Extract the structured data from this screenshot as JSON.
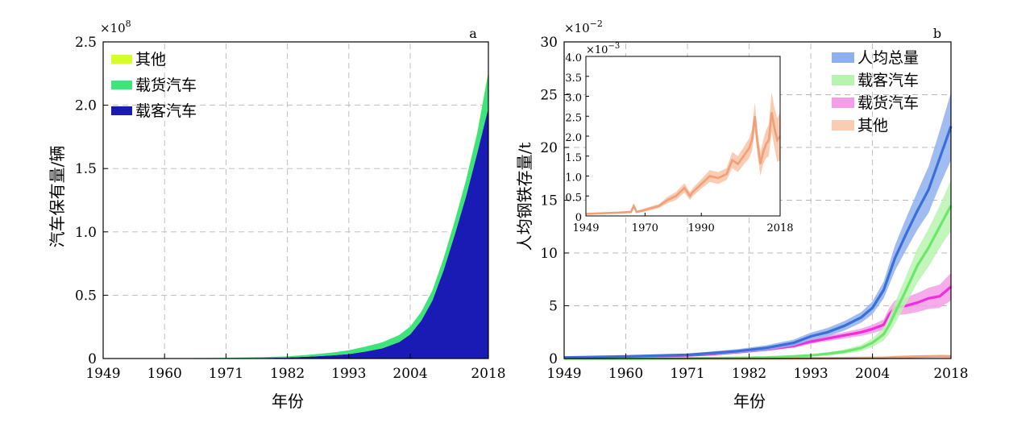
{
  "chart_data": [
    {
      "type": "area",
      "panel_label": "a",
      "xlabel": "年份",
      "ylabel": "汽车保有量/辆",
      "y_multiplier": "×10",
      "y_multiplier_exp": "8",
      "xlim": [
        1949,
        2018
      ],
      "ylim": [
        0,
        2.5
      ],
      "xticks": [
        "1949",
        "1960",
        "1971",
        "1982",
        "1993",
        "2004",
        "2018"
      ],
      "yticks": [
        "0",
        "0.5",
        "1.0",
        "1.5",
        "2.0",
        "2.5"
      ],
      "grid": true,
      "legend_position": "top-left",
      "legend": [
        "其他",
        "载货汽车",
        "载客汽车"
      ],
      "colors": {
        "其他": "#d4ff2a",
        "载货汽车": "#3de47a",
        "载客汽车": "#1a1ab4"
      },
      "x": [
        1949,
        1960,
        1971,
        1978,
        1982,
        1986,
        1990,
        1993,
        1996,
        1999,
        2002,
        2004,
        2006,
        2008,
        2010,
        2012,
        2014,
        2016,
        2018
      ],
      "series": [
        {
          "name": "载客汽车",
          "values": [
            0,
            0,
            0.002,
            0.005,
            0.008,
            0.015,
            0.025,
            0.035,
            0.055,
            0.08,
            0.13,
            0.19,
            0.3,
            0.46,
            0.7,
            0.98,
            1.28,
            1.62,
            1.98
          ]
        },
        {
          "name": "载货汽车",
          "values": [
            0,
            0.001,
            0.004,
            0.007,
            0.01,
            0.015,
            0.022,
            0.03,
            0.04,
            0.048,
            0.055,
            0.062,
            0.07,
            0.08,
            0.095,
            0.11,
            0.13,
            0.16,
            0.28
          ]
        },
        {
          "name": "其他",
          "values": [
            0,
            0,
            0,
            0,
            0,
            0,
            0,
            0,
            0,
            0,
            0,
            0,
            0,
            0,
            0.002,
            0.003,
            0.004,
            0.006,
            0.008
          ]
        }
      ]
    },
    {
      "type": "line",
      "panel_label": "b",
      "xlabel": "年份",
      "ylabel": "人均钢铁存量/t",
      "y_multiplier": "×10",
      "y_multiplier_exp": "−2",
      "xlim": [
        1949,
        2018
      ],
      "ylim": [
        0,
        30
      ],
      "xticks": [
        "1949",
        "1960",
        "1971",
        "1982",
        "1993",
        "2004",
        "2018"
      ],
      "yticks": [
        "0",
        "5",
        "10",
        "15",
        "20",
        "25",
        "30"
      ],
      "grid": true,
      "legend_position": "top-right",
      "legend": [
        "人均总量",
        "载客汽车",
        "载货汽车",
        "其他"
      ],
      "x": [
        1949,
        1960,
        1971,
        1975,
        1980,
        1985,
        1990,
        1993,
        1996,
        1999,
        2002,
        2004,
        2006,
        2007,
        2008,
        2010,
        2012,
        2014,
        2016,
        2018
      ],
      "series": [
        {
          "name": "人均总量",
          "color": "#3a6fd8",
          "band": "#8fb0ee",
          "values": [
            0.1,
            0.2,
            0.35,
            0.5,
            0.7,
            1.0,
            1.5,
            2.1,
            2.5,
            3.1,
            3.9,
            4.8,
            6.5,
            8.0,
            9.5,
            11.8,
            14.0,
            16.0,
            19.0,
            22.0
          ],
          "spread": [
            0.05,
            0.05,
            0.1,
            0.15,
            0.2,
            0.25,
            0.3,
            0.35,
            0.4,
            0.45,
            0.5,
            0.6,
            0.8,
            1.0,
            1.2,
            1.5,
            1.8,
            2.2,
            2.6,
            3.2
          ]
        },
        {
          "name": "载客汽车",
          "color": "#6be86b",
          "band": "#b9f3b0",
          "values": [
            0,
            0,
            0.02,
            0.04,
            0.06,
            0.1,
            0.2,
            0.3,
            0.45,
            0.65,
            1.0,
            1.5,
            2.3,
            3.2,
            4.3,
            6.5,
            8.8,
            10.5,
            12.5,
            14.5
          ],
          "spread": [
            0,
            0,
            0.01,
            0.02,
            0.03,
            0.05,
            0.08,
            0.1,
            0.15,
            0.2,
            0.3,
            0.4,
            0.6,
            0.8,
            1.0,
            1.3,
            1.6,
            1.8,
            2.0,
            2.4
          ]
        },
        {
          "name": "载货汽车",
          "color": "#ee2ed8",
          "band": "#f59ee8",
          "values": [
            0.05,
            0.15,
            0.3,
            0.4,
            0.6,
            0.85,
            1.2,
            1.6,
            1.9,
            2.2,
            2.5,
            2.8,
            3.2,
            4.2,
            4.8,
            5.0,
            5.3,
            5.7,
            5.9,
            6.8
          ],
          "spread": [
            0.03,
            0.05,
            0.08,
            0.1,
            0.12,
            0.15,
            0.18,
            0.2,
            0.25,
            0.3,
            0.35,
            0.4,
            0.5,
            0.6,
            0.7,
            0.8,
            0.9,
            1.0,
            1.1,
            1.3
          ]
        },
        {
          "name": "其他",
          "color": "#f2a27a",
          "band": "#f8cdb4",
          "values": [
            0,
            0.001,
            0.003,
            0.004,
            0.006,
            0.008,
            0.012,
            0.02,
            0.025,
            0.035,
            0.05,
            0.06,
            0.07,
            0.09,
            0.12,
            0.15,
            0.18,
            0.2,
            0.22,
            0.2
          ],
          "spread": [
            0,
            0.001,
            0.001,
            0.002,
            0.003,
            0.003,
            0.004,
            0.005,
            0.006,
            0.008,
            0.01,
            0.012,
            0.015,
            0.02,
            0.025,
            0.03,
            0.04,
            0.05,
            0.06,
            0.08
          ]
        }
      ],
      "inset": {
        "type": "line",
        "series_name": "其他",
        "y_multiplier": "×10",
        "y_multiplier_exp": "−3",
        "xlim": [
          1949,
          2018
        ],
        "ylim": [
          0,
          4.0
        ],
        "xticks": [
          "1949",
          "1970",
          "1990",
          "2018"
        ],
        "yticks": [
          "0",
          "0.5",
          "1.0",
          "1.5",
          "2.0",
          "2.5",
          "3.0",
          "3.5",
          "4.0"
        ],
        "x": [
          1949,
          1960,
          1965,
          1966,
          1967,
          1970,
          1975,
          1978,
          1981,
          1984,
          1986,
          1987,
          1990,
          1993,
          1996,
          1999,
          2001,
          2003,
          2005,
          2007,
          2008,
          2009,
          2010,
          2011,
          2012,
          2013,
          2014,
          2015,
          2016,
          2017,
          2018
        ],
        "values": [
          0.05,
          0.08,
          0.1,
          0.25,
          0.1,
          0.15,
          0.25,
          0.4,
          0.5,
          0.7,
          0.5,
          0.6,
          0.8,
          1.0,
          0.95,
          1.05,
          1.4,
          1.3,
          1.5,
          1.7,
          1.9,
          2.5,
          1.8,
          1.3,
          1.6,
          1.8,
          1.9,
          2.6,
          2.2,
          1.9,
          2.0
        ],
        "spread": [
          0.02,
          0.02,
          0.03,
          0.05,
          0.03,
          0.04,
          0.05,
          0.08,
          0.1,
          0.12,
          0.1,
          0.1,
          0.12,
          0.15,
          0.15,
          0.15,
          0.2,
          0.2,
          0.22,
          0.25,
          0.28,
          0.35,
          0.3,
          0.3,
          0.3,
          0.35,
          0.4,
          0.5,
          0.5,
          0.55,
          0.6
        ]
      }
    }
  ]
}
